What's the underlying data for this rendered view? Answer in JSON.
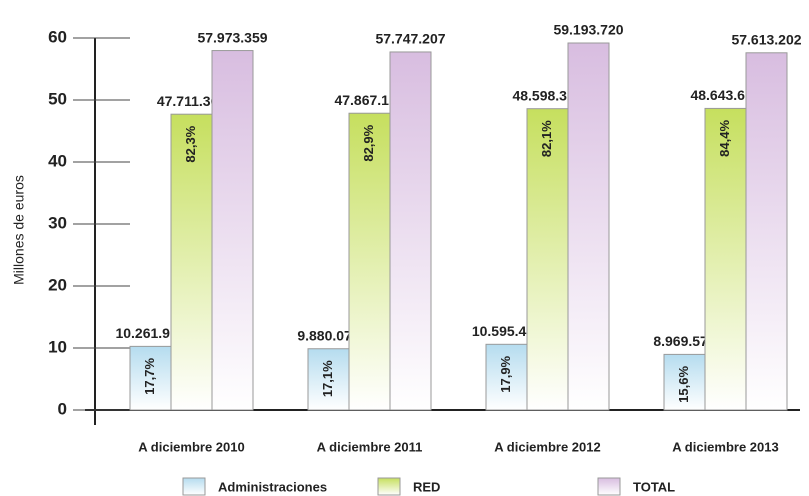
{
  "chart_data": {
    "type": "bar",
    "y_label": "Millones de euros",
    "categories": [
      "A diciembre 2010",
      "A diciembre 2011",
      "A diciembre 2012",
      "A diciembre 2013"
    ],
    "series": [
      {
        "name": "Administraciones",
        "color": "#b5dcef",
        "values": [
          10.261992,
          9.880078,
          10.595411,
          8.969577
        ],
        "value_labels": [
          "10.261.992",
          "9.880.078",
          "10.595.411",
          "8.969.577"
        ],
        "share_labels": [
          "17,7%",
          "17,1%",
          "17,9%",
          "15,6%"
        ]
      },
      {
        "name": "RED",
        "color": "#c6df5e",
        "values": [
          47.711367,
          47.867129,
          48.598309,
          48.643625
        ],
        "value_labels": [
          "47.711.367",
          "47.867.129",
          "48.598.309",
          "48.643.625"
        ],
        "share_labels": [
          "82,3%",
          "82,9%",
          "82,1%",
          "84,4%"
        ]
      },
      {
        "name": "TOTAL",
        "color": "#d8bde0",
        "values": [
          57.973359,
          57.747207,
          59.19372,
          57.613202
        ],
        "value_labels": [
          "57.973.359",
          "57.747.207",
          "59.193.720",
          "57.613.202"
        ]
      }
    ],
    "ylim": [
      0,
      60
    ],
    "yticks": [
      0,
      10,
      20,
      30,
      40,
      50,
      60
    ]
  }
}
